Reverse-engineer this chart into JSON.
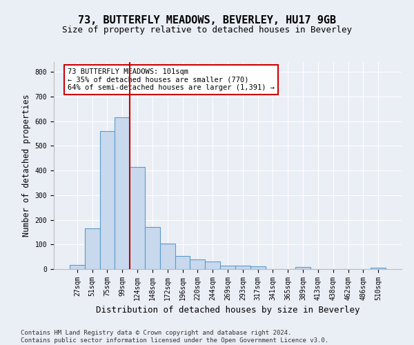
{
  "title": "73, BUTTERFLY MEADOWS, BEVERLEY, HU17 9GB",
  "subtitle": "Size of property relative to detached houses in Beverley",
  "xlabel": "Distribution of detached houses by size in Beverley",
  "ylabel": "Number of detached properties",
  "footnote": "Contains HM Land Registry data © Crown copyright and database right 2024.\nContains public sector information licensed under the Open Government Licence v3.0.",
  "bar_categories": [
    "27sqm",
    "51sqm",
    "75sqm",
    "99sqm",
    "124sqm",
    "148sqm",
    "172sqm",
    "196sqm",
    "220sqm",
    "244sqm",
    "269sqm",
    "293sqm",
    "317sqm",
    "341sqm",
    "365sqm",
    "389sqm",
    "413sqm",
    "438sqm",
    "462sqm",
    "486sqm",
    "510sqm"
  ],
  "bar_values": [
    18,
    165,
    560,
    615,
    415,
    170,
    105,
    52,
    40,
    30,
    15,
    13,
    10,
    0,
    0,
    8,
    0,
    0,
    0,
    0,
    7
  ],
  "bar_color": "#c8d9ed",
  "bar_edge_color": "#5a9ac9",
  "bar_edge_width": 0.8,
  "vline_bin_index": 3,
  "vline_color": "#cc0000",
  "annotation_line1": "73 BUTTERFLY MEADOWS: 101sqm",
  "annotation_line2": "← 35% of detached houses are smaller (770)",
  "annotation_line3": "64% of semi-detached houses are larger (1,391) →",
  "annotation_box_color": "#ffffff",
  "annotation_box_edge": "#cc0000",
  "ylim": [
    0,
    840
  ],
  "yticks": [
    0,
    100,
    200,
    300,
    400,
    500,
    600,
    700,
    800
  ],
  "bg_color": "#eaeef5",
  "plot_bg_color": "#eaeef5",
  "grid_color": "#ffffff",
  "title_fontsize": 11,
  "subtitle_fontsize": 9,
  "ylabel_fontsize": 8.5,
  "xlabel_fontsize": 9,
  "tick_fontsize": 7,
  "annot_fontsize": 7.5,
  "footnote_fontsize": 6.5
}
